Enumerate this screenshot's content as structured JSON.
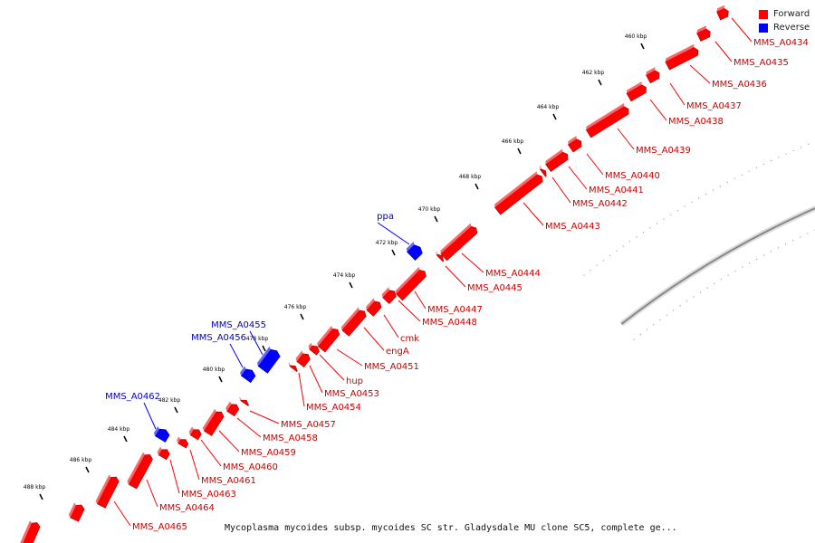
{
  "legend": {
    "forward_label": "Forward",
    "reverse_label": "Reverse",
    "forward_color": "#ff0000",
    "reverse_color": "#0000ff"
  },
  "caption": "Mycoplasma mycoides subsp. mycoides SC str. Gladysdale MU clone SC5, complete ge...",
  "colors": {
    "forward_label": "#cc0000",
    "reverse_label": "#0000cc",
    "backbone": "#888888"
  },
  "ticks": [
    "460 kbp",
    "462 kbp",
    "464 kbp",
    "466 kbp",
    "468 kbp",
    "470 kbp",
    "472 kbp",
    "474 kbp",
    "476 kbp",
    "478 kbp",
    "480 kbp",
    "482 kbp",
    "484 kbp",
    "486 kbp",
    "488 kbp"
  ],
  "forward_genes": [
    "MMS_A0434",
    "MMS_A0435",
    "MMS_A0436",
    "MMS_A0437",
    "MMS_A0438",
    "MMS_A0439",
    "MMS_A0440",
    "MMS_A0441",
    "MMS_A0442",
    "MMS_A0443",
    "MMS_A0444",
    "MMS_A0445",
    "MMS_A0447",
    "MMS_A0448",
    "cmk",
    "engA",
    "MMS_A0451",
    "hup",
    "MMS_A0453",
    "MMS_A0454",
    "MMS_A0457",
    "MMS_A0458",
    "MMS_A0459",
    "MMS_A0460",
    "MMS_A0461",
    "MMS_A0463",
    "MMS_A0464",
    "MMS_A0465"
  ],
  "reverse_genes": [
    "ppa",
    "MMS_A0455",
    "MMS_A0456",
    "MMS_A0462"
  ]
}
